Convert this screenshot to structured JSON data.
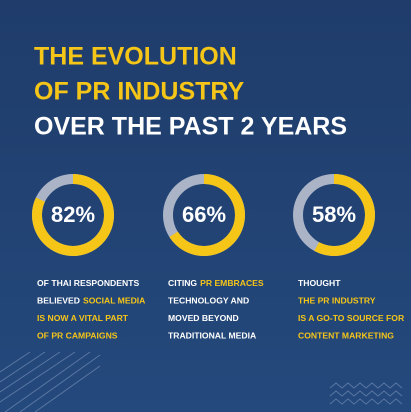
{
  "title_lines": [
    {
      "text": "THE EVOLUTION",
      "color": "#f5c518"
    },
    {
      "text": "OF PR INDUSTRY",
      "color": "#f5c518"
    },
    {
      "text": "OVER THE PAST 2 YEARS",
      "color": "#ffffff"
    }
  ],
  "chart_data": [
    {
      "type": "donut",
      "values": [
        82
      ],
      "value_labels": [
        "82%"
      ],
      "color": "#f5c518",
      "track_color": "#aab4c6",
      "caption": [
        [
          {
            "text": "OF THAI RESPONDENTS",
            "color": "#ffffff"
          }
        ],
        [
          {
            "text": "BELIEVED",
            "color": "#ffffff"
          },
          {
            "text": "SOCIAL MEDIA",
            "color": "#f5c518"
          }
        ],
        [
          {
            "text": "IS NOW A VITAL PART",
            "color": "#f5c518"
          }
        ],
        [
          {
            "text": "OF PR CAMPAIGNS",
            "color": "#f5c518"
          }
        ]
      ]
    },
    {
      "type": "donut",
      "values": [
        66
      ],
      "value_labels": [
        "66%"
      ],
      "color": "#f5c518",
      "track_color": "#aab4c6",
      "caption": [
        [
          {
            "text": "CITING",
            "color": "#ffffff"
          },
          {
            "text": "PR EMBRACES",
            "color": "#f5c518"
          }
        ],
        [
          {
            "text": "TECHNOLOGY AND",
            "color": "#ffffff"
          }
        ],
        [
          {
            "text": "MOVED BEYOND",
            "color": "#ffffff"
          }
        ],
        [
          {
            "text": "TRADITIONAL MEDIA",
            "color": "#ffffff"
          }
        ]
      ]
    },
    {
      "type": "donut",
      "values": [
        58
      ],
      "value_labels": [
        "58%"
      ],
      "color": "#f5c518",
      "track_color": "#aab4c6",
      "caption": [
        [
          {
            "text": "THOUGHT",
            "color": "#ffffff"
          }
        ],
        [
          {
            "text": "THE PR INDUSTRY",
            "color": "#f5c518"
          }
        ],
        [
          {
            "text": "IS A GO-TO SOURCE FOR",
            "color": "#f5c518"
          }
        ],
        [
          {
            "text": "CONTENT MARKETING",
            "color": "#f5c518"
          }
        ]
      ]
    }
  ]
}
